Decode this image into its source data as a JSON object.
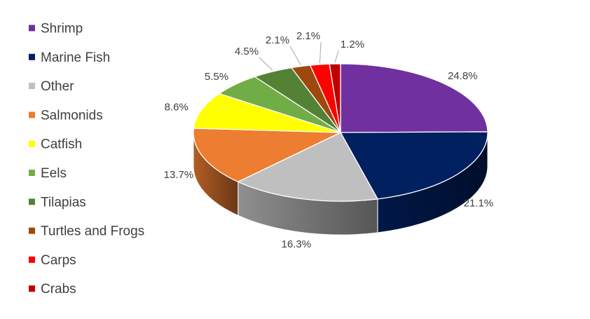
{
  "chart_data": {
    "type": "pie",
    "style": "3d-pie",
    "title": "",
    "legend_position": "left",
    "value_format": "percent-1dp",
    "label_color": "#404040",
    "series": [
      {
        "values": [
          24.8,
          21.1,
          16.3,
          13.7,
          8.6,
          5.5,
          4.5,
          2.1,
          2.1,
          1.2
        ]
      }
    ],
    "categories": [
      "Shrimp",
      "Marine Fish",
      "Other",
      "Salmonids",
      "Catfish",
      "Eels",
      "Tilapias",
      "Turtles and Frogs",
      "Carps",
      "Crabs"
    ],
    "slices": [
      {
        "label": "Shrimp",
        "value": 24.8,
        "display": "24.8%",
        "color": "#7030A0"
      },
      {
        "label": "Marine Fish",
        "value": 21.1,
        "display": "21.1%",
        "color": "#002060"
      },
      {
        "label": "Other",
        "value": 16.3,
        "display": "16.3%",
        "color": "#BFBFBF"
      },
      {
        "label": "Salmonids",
        "value": 13.7,
        "display": "13.7%",
        "color": "#ED7D31"
      },
      {
        "label": "Catfish",
        "value": 8.6,
        "display": "8.6%",
        "color": "#FFFF00"
      },
      {
        "label": "Eels",
        "value": 5.5,
        "display": "5.5%",
        "color": "#70AD47"
      },
      {
        "label": "Tilapias",
        "value": 4.5,
        "display": "4.5%",
        "color": "#548235"
      },
      {
        "label": "Turtles and Frogs",
        "value": 2.1,
        "display": "2.1%",
        "color": "#9E480E"
      },
      {
        "label": "Carps",
        "value": 2.1,
        "display": "2.1%",
        "color": "#FF0000"
      },
      {
        "label": "Crabs",
        "value": 1.2,
        "display": "1.2%",
        "color": "#C00000"
      }
    ]
  }
}
